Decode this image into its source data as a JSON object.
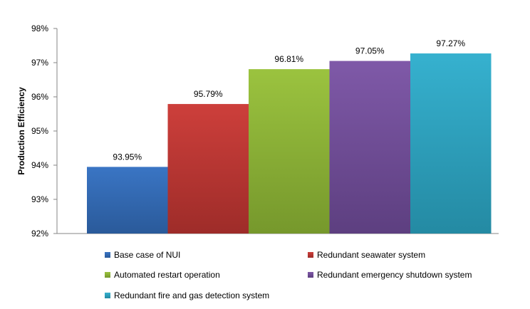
{
  "chart_data": {
    "type": "bar",
    "title": "",
    "xlabel": "",
    "ylabel": "Production Efficiency",
    "ylim": [
      92,
      98
    ],
    "yticks": [
      "92%",
      "93%",
      "94%",
      "95%",
      "96%",
      "97%",
      "98%"
    ],
    "grid": false,
    "legend_position": "bottom",
    "series": [
      {
        "name": "Base case of NUI",
        "value": 93.95,
        "label": "93.95%",
        "color": "#3a75c4",
        "color_dark": "#2a5a9a"
      },
      {
        "name": "Redundant seawater system",
        "value": 95.79,
        "label": "95.79%",
        "color": "#cd3f3b",
        "color_dark": "#9e2c29"
      },
      {
        "name": "Automated restart operation",
        "value": 96.81,
        "label": "96.81%",
        "color": "#9bc33f",
        "color_dark": "#76982c"
      },
      {
        "name": "Redundant emergency shutdown system",
        "value": 97.05,
        "label": "97.05%",
        "color": "#7f59a8",
        "color_dark": "#5d3f80"
      },
      {
        "name": "Redundant fire and gas detection system",
        "value": 97.27,
        "label": "97.27%",
        "color": "#36b1cf",
        "color_dark": "#248aa3"
      }
    ]
  }
}
